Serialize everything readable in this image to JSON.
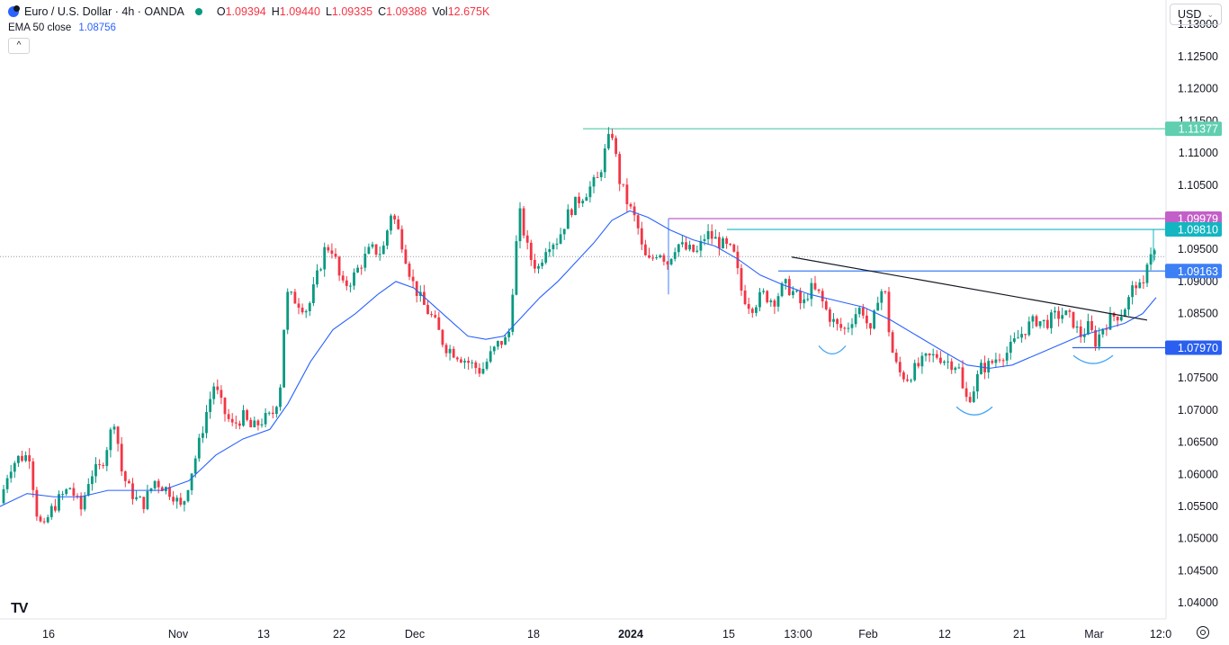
{
  "header": {
    "symbol": "Euro / U.S. Dollar · 4h · OANDA",
    "ohlc": [
      {
        "k": "O",
        "v": "1.09394"
      },
      {
        "k": "H",
        "v": "1.09440"
      },
      {
        "k": "L",
        "v": "1.09335"
      },
      {
        "k": "C",
        "v": "1.09388"
      },
      {
        "k": "Vol",
        "v": "12.675K"
      }
    ],
    "ema_label": "EMA 50 close",
    "ema_value": "1.08756",
    "collapse": "^",
    "currency": "USD",
    "currency_chevron": "⌄",
    "logo": "TV"
  },
  "colors": {
    "up": "#089981",
    "down": "#f23645",
    "ema": "#2962ff",
    "level_1_11377": "#5fcfb0",
    "level_1_09979": "#c35fc8",
    "level_1_09810": "#13b5c0",
    "level_1_09163": "#3d7ff5",
    "level_1_07970": "#2a5ff0"
  },
  "chart_data": {
    "type": "candlestick",
    "y_ticks": [
      "1.13000",
      "1.12500",
      "1.12000",
      "1.11500",
      "1.11000",
      "1.10500",
      "1.10000",
      "1.09500",
      "1.09000",
      "1.08500",
      "1.08000",
      "1.07500",
      "1.07000",
      "1.06500",
      "1.06000",
      "1.05500",
      "1.05000",
      "1.04500",
      "1.04000"
    ],
    "x_ticks": [
      "16",
      "Nov",
      "13",
      "22",
      "Dec",
      "18",
      "2024",
      "15",
      "13:00",
      "Feb",
      "12",
      "21",
      "Mar",
      "12:0"
    ],
    "ylim": [
      1.0375,
      1.1338
    ],
    "levels": [
      {
        "label": "1.11377",
        "value": 1.11377,
        "color_key": "level_1_11377"
      },
      {
        "label": "1.09979",
        "value": 1.09979,
        "color_key": "level_1_09979"
      },
      {
        "label": "1.09810",
        "value": 1.0981,
        "color_key": "level_1_09810"
      },
      {
        "label": "1.09163",
        "value": 1.09163,
        "color_key": "level_1_09163"
      },
      {
        "label": "1.07970",
        "value": 1.0797,
        "color_key": "level_1_07970"
      }
    ],
    "last_price": 1.09388,
    "price_path": [
      [
        0,
        1.0555
      ],
      [
        10,
        1.061
      ],
      [
        20,
        1.0625
      ],
      [
        33,
        1.063
      ],
      [
        40,
        1.0545
      ],
      [
        48,
        1.051
      ],
      [
        55,
        1.054
      ],
      [
        65,
        1.056
      ],
      [
        78,
        1.058
      ],
      [
        90,
        1.0545
      ],
      [
        100,
        1.06
      ],
      [
        112,
        1.061
      ],
      [
        122,
        1.066
      ],
      [
        128,
        1.069
      ],
      [
        134,
        1.061
      ],
      [
        142,
        1.058
      ],
      [
        152,
        1.056
      ],
      [
        160,
        1.0555
      ],
      [
        172,
        1.059
      ],
      [
        182,
        1.058
      ],
      [
        192,
        1.057
      ],
      [
        202,
        1.0545
      ],
      [
        210,
        1.059
      ],
      [
        220,
        1.064
      ],
      [
        230,
        1.07
      ],
      [
        238,
        1.074
      ],
      [
        248,
        1.07
      ],
      [
        258,
        1.0675
      ],
      [
        270,
        1.069
      ],
      [
        280,
        1.067
      ],
      [
        292,
        1.0685
      ],
      [
        302,
        1.069
      ],
      [
        311,
        1.073
      ],
      [
        318,
        1.088
      ],
      [
        330,
        1.087
      ],
      [
        342,
        1.0855
      ],
      [
        352,
        1.0905
      ],
      [
        362,
        1.0955
      ],
      [
        370,
        1.095
      ],
      [
        380,
        1.089
      ],
      [
        392,
        1.0905
      ],
      [
        402,
        1.093
      ],
      [
        412,
        1.095
      ],
      [
        425,
        1.0945
      ],
      [
        435,
        1.101
      ],
      [
        447,
        1.096
      ],
      [
        458,
        1.09
      ],
      [
        470,
        1.0865
      ],
      [
        482,
        1.084
      ],
      [
        494,
        1.08
      ],
      [
        505,
        1.079
      ],
      [
        515,
        1.078
      ],
      [
        525,
        1.077
      ],
      [
        535,
        1.076
      ],
      [
        545,
        1.0785
      ],
      [
        555,
        1.0805
      ],
      [
        565,
        1.081
      ],
      [
        577,
        1.101
      ],
      [
        588,
        1.094
      ],
      [
        598,
        1.092
      ],
      [
        608,
        1.096
      ],
      [
        620,
        1.0965
      ],
      [
        633,
        1.101
      ],
      [
        645,
        1.103
      ],
      [
        655,
        1.1045
      ],
      [
        665,
        1.106
      ],
      [
        672,
        1.11
      ],
      [
        680,
        1.1135
      ],
      [
        688,
        1.106
      ],
      [
        698,
        1.102
      ],
      [
        708,
        1.099
      ],
      [
        715,
        1.094
      ],
      [
        722,
        1.093
      ],
      [
        732,
        1.095
      ],
      [
        742,
        1.093
      ],
      [
        752,
        1.096
      ],
      [
        762,
        1.095
      ],
      [
        775,
        1.0945
      ],
      [
        785,
        1.0975
      ],
      [
        795,
        1.0965
      ],
      [
        805,
        1.0955
      ],
      [
        815,
        1.0945
      ],
      [
        825,
        1.088
      ],
      [
        835,
        1.086
      ],
      [
        848,
        1.088
      ],
      [
        860,
        1.087
      ],
      [
        872,
        1.0895
      ],
      [
        884,
        1.088
      ],
      [
        892,
        1.086
      ],
      [
        900,
        1.089
      ],
      [
        910,
        1.088
      ],
      [
        920,
        1.085
      ],
      [
        930,
        1.083
      ],
      [
        940,
        1.0825
      ],
      [
        950,
        1.085
      ],
      [
        958,
        1.086
      ],
      [
        968,
        1.0815
      ],
      [
        976,
        1.088
      ],
      [
        983,
        1.089
      ],
      [
        990,
        1.08
      ],
      [
        998,
        1.076
      ],
      [
        1008,
        1.075
      ],
      [
        1018,
        1.0765
      ],
      [
        1030,
        1.078
      ],
      [
        1042,
        1.0785
      ],
      [
        1054,
        1.0775
      ],
      [
        1065,
        1.077
      ],
      [
        1072,
        1.0715
      ],
      [
        1080,
        1.0725
      ],
      [
        1090,
        1.0765
      ],
      [
        1100,
        1.077
      ],
      [
        1110,
        1.0785
      ],
      [
        1120,
        1.079
      ],
      [
        1130,
        1.081
      ],
      [
        1142,
        1.083
      ],
      [
        1152,
        1.084
      ],
      [
        1162,
        1.0835
      ],
      [
        1172,
        1.0845
      ],
      [
        1182,
        1.085
      ],
      [
        1192,
        1.084
      ],
      [
        1200,
        1.0815
      ],
      [
        1210,
        1.083
      ],
      [
        1218,
        1.0805
      ],
      [
        1226,
        1.083
      ],
      [
        1236,
        1.0845
      ],
      [
        1246,
        1.085
      ],
      [
        1254,
        1.087
      ],
      [
        1262,
        1.09
      ],
      [
        1270,
        1.088
      ],
      [
        1276,
        1.0945
      ],
      [
        1282,
        1.095
      ],
      [
        1285,
        1.0939
      ]
    ],
    "ema_path": [
      [
        0,
        1.055
      ],
      [
        30,
        1.057
      ],
      [
        60,
        1.0565
      ],
      [
        90,
        1.0565
      ],
      [
        120,
        1.0575
      ],
      [
        150,
        1.0575
      ],
      [
        180,
        1.0575
      ],
      [
        210,
        1.059
      ],
      [
        240,
        1.063
      ],
      [
        270,
        1.0655
      ],
      [
        300,
        1.067
      ],
      [
        320,
        1.071
      ],
      [
        345,
        1.0775
      ],
      [
        370,
        1.0825
      ],
      [
        395,
        1.085
      ],
      [
        420,
        1.088
      ],
      [
        440,
        1.09
      ],
      [
        460,
        1.089
      ],
      [
        480,
        1.0865
      ],
      [
        500,
        1.084
      ],
      [
        520,
        1.0815
      ],
      [
        540,
        1.081
      ],
      [
        560,
        1.0815
      ],
      [
        580,
        1.0845
      ],
      [
        600,
        1.0875
      ],
      [
        620,
        1.09
      ],
      [
        640,
        1.093
      ],
      [
        660,
        1.096
      ],
      [
        680,
        1.0995
      ],
      [
        700,
        1.101
      ],
      [
        720,
        1.1
      ],
      [
        745,
        1.098
      ],
      [
        770,
        1.0965
      ],
      [
        795,
        1.0955
      ],
      [
        820,
        1.0935
      ],
      [
        845,
        1.091
      ],
      [
        870,
        1.0895
      ],
      [
        900,
        1.088
      ],
      [
        930,
        1.087
      ],
      [
        960,
        1.086
      ],
      [
        990,
        1.084
      ],
      [
        1020,
        1.0815
      ],
      [
        1050,
        1.079
      ],
      [
        1075,
        1.077
      ],
      [
        1100,
        1.0765
      ],
      [
        1125,
        1.077
      ],
      [
        1150,
        1.0785
      ],
      [
        1175,
        1.08
      ],
      [
        1200,
        1.0815
      ],
      [
        1225,
        1.0825
      ],
      [
        1250,
        1.0835
      ],
      [
        1270,
        1.085
      ],
      [
        1285,
        1.0875
      ]
    ],
    "resistance_lines": [
      {
        "x1": 648,
        "x2": 1295,
        "y": 1.11377
      },
      {
        "x1": 743,
        "x2": 1295,
        "y": 1.09979
      },
      {
        "x1": 808,
        "x2": 1295,
        "y": 1.0981
      },
      {
        "x1": 865,
        "x2": 1295,
        "y": 1.09163
      },
      {
        "x1": 1192,
        "x2": 1295,
        "y": 1.0797
      }
    ],
    "trendline": {
      "x1": 880,
      "y1": 1.0938,
      "x2": 1275,
      "y2": 1.084
    },
    "arcs": [
      {
        "cx": 925,
        "y": 1.08,
        "w": 30
      },
      {
        "cx": 1083,
        "y": 1.0705,
        "w": 40
      },
      {
        "cx": 1215,
        "y": 1.0785,
        "w": 44
      }
    ]
  }
}
